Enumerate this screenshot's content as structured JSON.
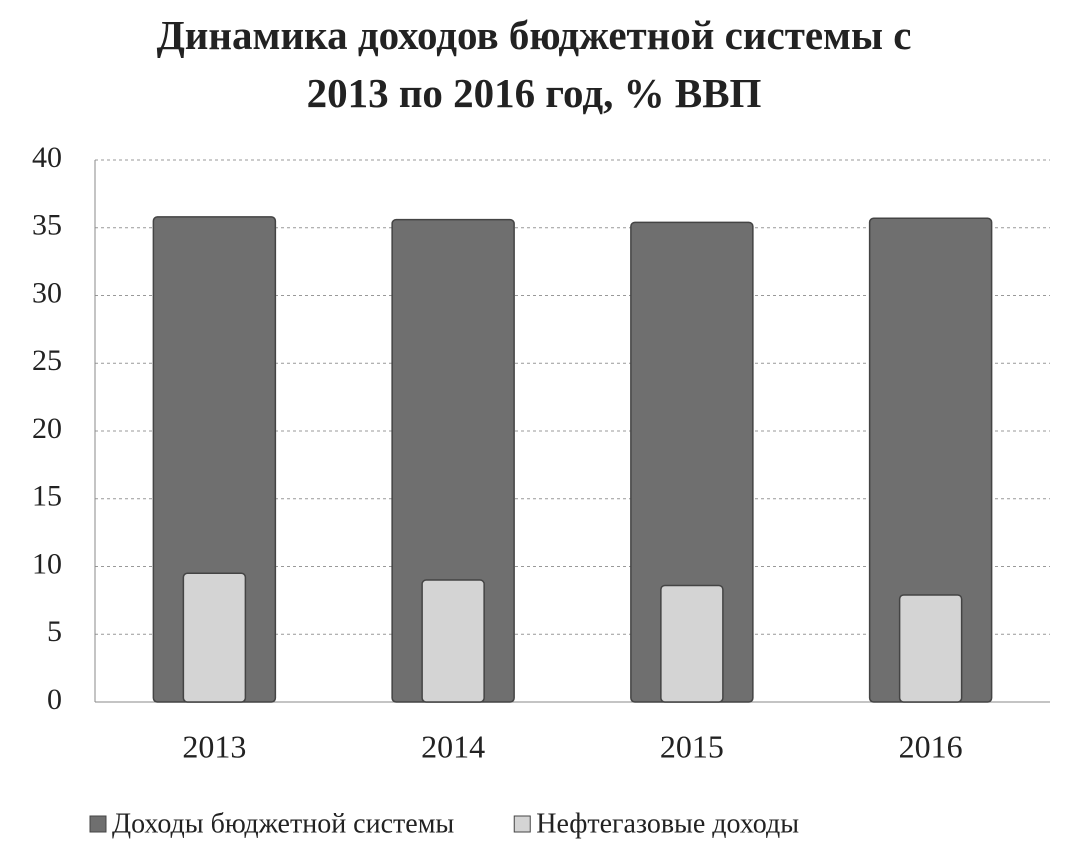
{
  "chart_data": {
    "type": "bar",
    "title": "Динамика доходов бюджетной системы с 2013 по 2016 год, % ВВП",
    "categories": [
      "2013",
      "2014",
      "2015",
      "2016"
    ],
    "series": [
      {
        "name": "Доходы бюджетной системы",
        "color": "#6f6f6f",
        "values": [
          35.8,
          35.6,
          35.4,
          35.7
        ]
      },
      {
        "name": "Нефтегазовые доходы",
        "color": "#d4d4d4",
        "values": [
          9.5,
          9.0,
          8.6,
          7.9
        ]
      }
    ],
    "ylim": [
      0,
      40
    ],
    "yticks": [
      0,
      5,
      10,
      15,
      20,
      25,
      30,
      35,
      40
    ],
    "grid": true,
    "overlap": true,
    "legend": "bottom"
  }
}
